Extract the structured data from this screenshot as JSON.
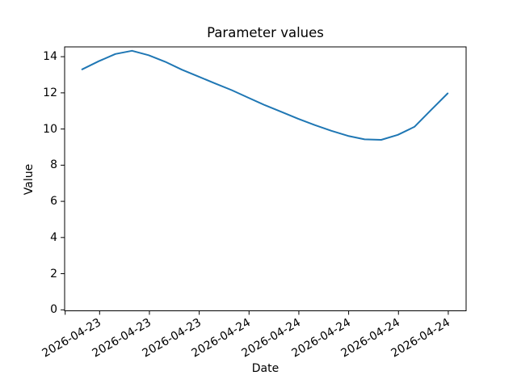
{
  "window": {
    "background_color": "#ffffff"
  },
  "chart_data": {
    "type": "line",
    "title": "Parameter values",
    "xlabel": "Date",
    "ylabel": "Value",
    "grid": false,
    "legend": "none",
    "line_color": "#1f77b4",
    "axis_color": "#000000",
    "ylim": [
      0,
      14.55
    ],
    "y_ticks": [
      0,
      2,
      4,
      6,
      8,
      10,
      12,
      14
    ],
    "x_tick_labels": [
      "",
      "2026-04-23",
      "2026-04-23",
      "2026-04-23",
      "2026-04-24",
      "2026-04-24",
      "2026-04-24",
      "2026-04-24",
      "2026-04-24"
    ],
    "x": [
      "2026-04-23 13:00",
      "2026-04-23 14:00",
      "2026-04-23 15:00",
      "2026-04-23 16:00",
      "2026-04-23 17:00",
      "2026-04-23 18:00",
      "2026-04-23 19:00",
      "2026-04-23 20:00",
      "2026-04-23 21:00",
      "2026-04-23 22:00",
      "2026-04-23 23:00",
      "2026-04-24 00:00",
      "2026-04-24 01:00",
      "2026-04-24 02:00",
      "2026-04-24 03:00",
      "2026-04-24 04:00",
      "2026-04-24 05:00",
      "2026-04-24 06:00",
      "2026-04-24 07:00",
      "2026-04-24 08:00",
      "2026-04-24 09:00",
      "2026-04-24 10:00",
      "2026-04-24 11:00"
    ],
    "series": [
      {
        "name": "Parameter values",
        "values": [
          13.3,
          13.75,
          14.15,
          14.33,
          14.08,
          13.72,
          13.28,
          12.9,
          12.52,
          12.15,
          11.73,
          11.32,
          10.95,
          10.57,
          10.22,
          9.9,
          9.62,
          9.43,
          9.4,
          9.68,
          10.12,
          11.05,
          11.97
        ]
      }
    ]
  }
}
